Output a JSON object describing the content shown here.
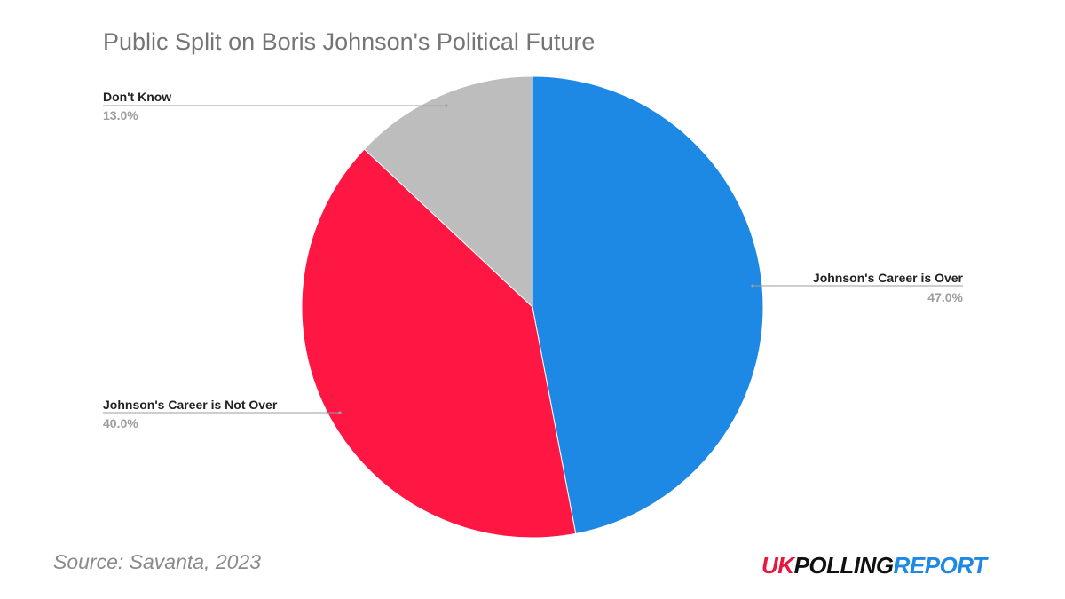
{
  "chart_data": {
    "type": "pie",
    "title": "Public Split on Boris Johnson's Political Future",
    "slices": [
      {
        "label": "Johnson's Career is Over",
        "value": 47.0,
        "display": "47.0%",
        "color": "#1e88e5"
      },
      {
        "label": "Johnson's Career is Not Over",
        "value": 40.0,
        "display": "40.0%",
        "color": "#ff1744"
      },
      {
        "label": "Don't Know",
        "value": 13.0,
        "display": "13.0%",
        "color": "#bdbdbd"
      }
    ],
    "start_angle": "12 o'clock",
    "direction": "clockwise",
    "legend": "none (callout labels)"
  },
  "source": "Source: Savanta, 2023",
  "logo": {
    "part1": "UK",
    "part2": "POLLING",
    "part3": "REPORT",
    "colors": {
      "part1": "#e8173f",
      "part2": "#111111",
      "part3": "#1e88e5"
    }
  }
}
